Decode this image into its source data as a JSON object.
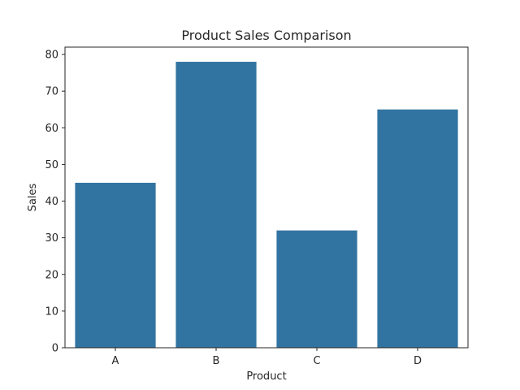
{
  "chart_data": {
    "type": "bar",
    "title": "Product Sales Comparison",
    "xlabel": "Product",
    "ylabel": "Sales",
    "categories": [
      "A",
      "B",
      "C",
      "D"
    ],
    "values": [
      45,
      78,
      32,
      65
    ],
    "ylim": [
      0,
      82
    ],
    "yticks": [
      0,
      10,
      20,
      30,
      40,
      50,
      60,
      70,
      80
    ],
    "bar_color": "#3274a1",
    "grid": false,
    "legend": "none"
  }
}
